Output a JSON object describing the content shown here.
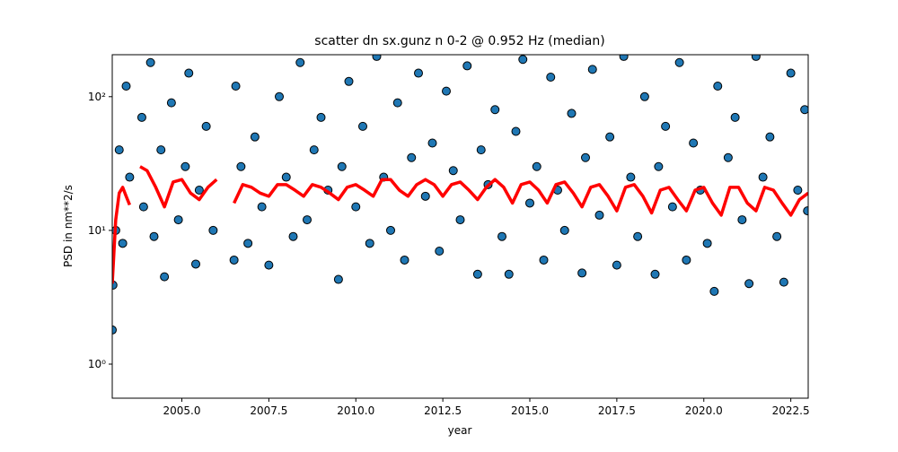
{
  "chart_data": {
    "type": "scatter",
    "title": "scatter dn sx.gunz n 0-2 @ 0.952 Hz (median)",
    "x_label": "year",
    "y_label": "PSD in nm**2/s",
    "xlim": [
      2003.0,
      2023.0
    ],
    "xticks": [
      {
        "value": 2005,
        "label": "2005.0"
      },
      {
        "value": 2007.5,
        "label": "2007.5"
      },
      {
        "value": 2010,
        "label": "2010.0"
      },
      {
        "value": 2012.5,
        "label": "2012.5"
      },
      {
        "value": 2015,
        "label": "2015.0"
      },
      {
        "value": 2017.5,
        "label": "2017.5"
      },
      {
        "value": 2020,
        "label": "2020.0"
      },
      {
        "value": 2022.5,
        "label": "2022.5"
      }
    ],
    "ylim": [
      0.556,
      206
    ],
    "y_log": true,
    "yticks": [
      {
        "value": 1,
        "label": "10⁰"
      },
      {
        "value": 10,
        "label": "10¹"
      },
      {
        "value": 100,
        "label": "10²"
      }
    ],
    "series": [
      {
        "type": "scatter",
        "color": "#1f77b4",
        "x": [
          2003.0,
          2003.02,
          2003.1,
          2003.2,
          2003.3,
          2003.4,
          2003.5,
          2003.85,
          2003.9,
          2004.1,
          2004.2,
          2004.4,
          2004.5,
          2004.7,
          2004.9,
          2005.1,
          2005.2,
          2005.4,
          2005.5,
          2005.7,
          2005.9,
          2006.5,
          2006.55,
          2006.7,
          2006.9,
          2007.1,
          2007.3,
          2007.5,
          2007.8,
          2008.0,
          2008.2,
          2008.4,
          2008.6,
          2008.8,
          2009.0,
          2009.2,
          2009.5,
          2009.6,
          2009.8,
          2010.0,
          2010.2,
          2010.4,
          2010.6,
          2010.8,
          2011.0,
          2011.2,
          2011.4,
          2011.6,
          2011.8,
          2012.0,
          2012.2,
          2012.4,
          2012.6,
          2012.8,
          2013.0,
          2013.2,
          2013.5,
          2013.6,
          2013.8,
          2014.0,
          2014.2,
          2014.4,
          2014.6,
          2014.8,
          2015.0,
          2015.2,
          2015.4,
          2015.6,
          2015.8,
          2016.0,
          2016.2,
          2016.5,
          2016.6,
          2016.8,
          2017.0,
          2017.3,
          2017.5,
          2017.7,
          2017.9,
          2018.1,
          2018.3,
          2018.6,
          2018.7,
          2018.9,
          2019.1,
          2019.3,
          2019.5,
          2019.7,
          2019.9,
          2020.1,
          2020.3,
          2020.4,
          2020.7,
          2020.9,
          2021.1,
          2021.3,
          2021.5,
          2021.7,
          2021.9,
          2022.1,
          2022.3,
          2022.5,
          2022.7,
          2022.9,
          2022.98
        ],
        "values": [
          1.8,
          3.9,
          10,
          40,
          8,
          120,
          25,
          70,
          15,
          180,
          9,
          40,
          4.5,
          90,
          12,
          30,
          150,
          5.6,
          20,
          60,
          10,
          6,
          120,
          30,
          8,
          50,
          15,
          5.5,
          100,
          25,
          9,
          180,
          12,
          40,
          70,
          20,
          4.3,
          30,
          130,
          15,
          60,
          8,
          200,
          25,
          10,
          90,
          6,
          35,
          150,
          18,
          45,
          7,
          110,
          28,
          12,
          170,
          4.7,
          40,
          22,
          80,
          9,
          4.7,
          55,
          190,
          16,
          30,
          6,
          140,
          20,
          10,
          75,
          4.8,
          35,
          160,
          13,
          50,
          5.5,
          200,
          25,
          9,
          100,
          4.7,
          30,
          60,
          15,
          180,
          6,
          45,
          20,
          8,
          3.5,
          120,
          35,
          70,
          12,
          4,
          200,
          25,
          50,
          9,
          4.1,
          150,
          20,
          80,
          14
        ]
      },
      {
        "type": "line",
        "color": "#ff0000",
        "x": [
          2003.0,
          2003.1,
          2003.2,
          2003.3,
          2003.4,
          2003.5,
          2003.65,
          2003.8,
          2004.0,
          2004.25,
          2004.5,
          2004.75,
          2005.0,
          2005.25,
          2005.5,
          2005.75,
          2006.0,
          2006.25,
          2006.5,
          2006.75,
          2007.0,
          2007.25,
          2007.5,
          2007.75,
          2008.0,
          2008.25,
          2008.5,
          2008.75,
          2009.0,
          2009.25,
          2009.5,
          2009.75,
          2010.0,
          2010.25,
          2010.5,
          2010.75,
          2011.0,
          2011.25,
          2011.5,
          2011.75,
          2012.0,
          2012.25,
          2012.5,
          2012.75,
          2013.0,
          2013.25,
          2013.5,
          2013.75,
          2014.0,
          2014.25,
          2014.5,
          2014.75,
          2015.0,
          2015.25,
          2015.5,
          2015.75,
          2016.0,
          2016.25,
          2016.5,
          2016.75,
          2017.0,
          2017.25,
          2017.5,
          2017.75,
          2018.0,
          2018.25,
          2018.5,
          2018.75,
          2019.0,
          2019.25,
          2019.5,
          2019.75,
          2020.0,
          2020.25,
          2020.5,
          2020.75,
          2021.0,
          2021.25,
          2021.5,
          2021.75,
          2022.0,
          2022.25,
          2022.5,
          2022.75,
          2023.0
        ],
        "values": [
          4,
          12,
          19,
          21,
          18,
          15.5,
          null,
          30,
          28,
          21,
          15,
          23,
          24,
          19,
          17,
          21,
          24,
          null,
          16,
          22,
          21,
          19,
          18,
          22,
          22,
          20,
          18,
          22,
          21,
          19,
          17,
          21,
          22,
          20,
          18,
          24,
          24,
          20,
          18,
          22,
          24,
          22,
          18,
          22,
          23,
          20,
          17,
          21,
          24,
          21,
          16,
          22,
          23,
          20,
          16,
          22,
          23,
          19,
          15,
          21,
          22,
          18,
          14,
          21,
          22,
          18,
          13.5,
          20,
          21,
          17,
          14,
          20,
          21,
          16,
          13,
          21,
          21,
          16,
          14,
          21,
          20,
          16,
          13,
          17,
          19
        ]
      }
    ]
  }
}
